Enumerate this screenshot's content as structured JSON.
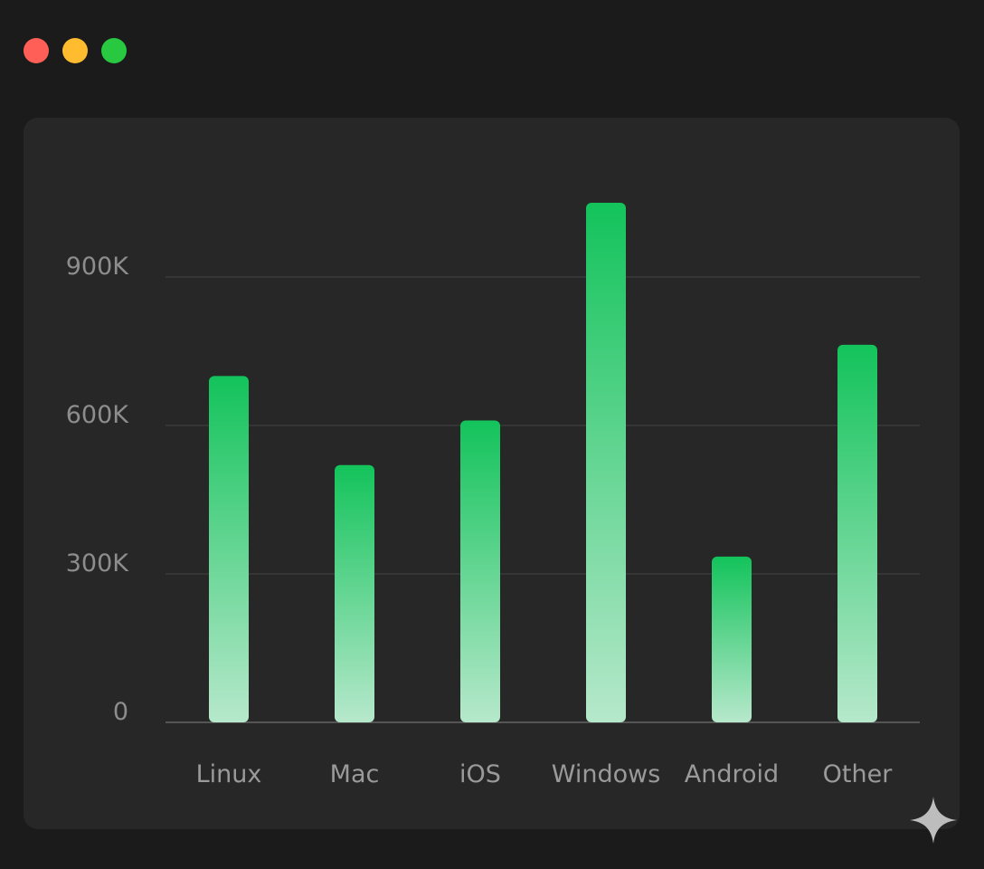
{
  "window_controls": [
    {
      "name": "close",
      "color": "#ff5f57"
    },
    {
      "name": "minimize",
      "color": "#febc2e"
    },
    {
      "name": "maximize",
      "color": "#28c840"
    }
  ],
  "colors": {
    "bar_top": "#13c35b",
    "bar_bottom": "#b6e8cb",
    "grid": "#3a3a3a",
    "axis": "#555555",
    "tick_text": "#8d8d8d",
    "category_text": "#9a9a9a"
  },
  "chart_data": {
    "type": "bar",
    "categories": [
      "Linux",
      "Mac",
      "iOS",
      "Windows",
      "Android",
      "Other"
    ],
    "values": [
      700000,
      520000,
      610000,
      1050000,
      335000,
      763000
    ],
    "ylim": [
      0,
      1050000
    ],
    "yticks": [
      0,
      300000,
      600000,
      900000
    ],
    "ytick_labels": [
      "0",
      "300K",
      "600K",
      "900K"
    ],
    "grid": true,
    "legend": "none"
  }
}
